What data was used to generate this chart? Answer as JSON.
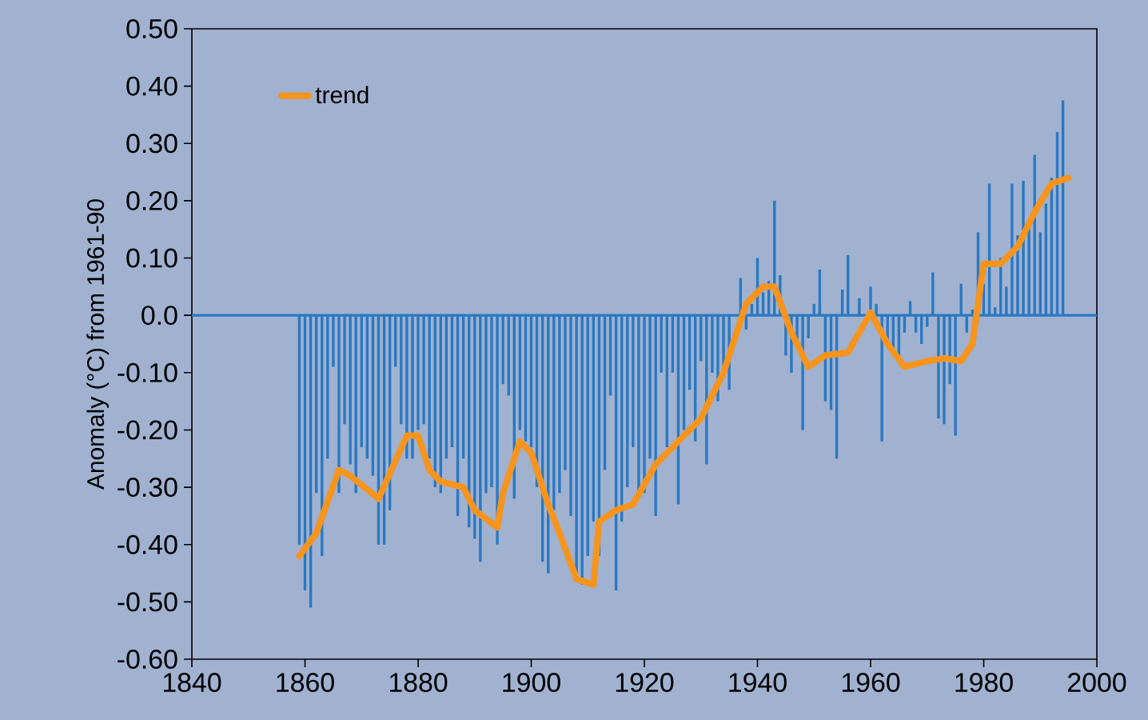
{
  "chart_data": {
    "type": "bar",
    "ylabel": "Anomaly (°C) from 1961-90",
    "xlim": [
      1840,
      2000
    ],
    "xticks": [
      1840,
      1860,
      1880,
      1900,
      1920,
      1940,
      1960,
      1980,
      2000
    ],
    "ylim": [
      -0.6,
      0.5
    ],
    "yticks": [
      {
        "value": 0.5,
        "label": "0.50"
      },
      {
        "value": 0.4,
        "label": "0.40"
      },
      {
        "value": 0.3,
        "label": "0.30"
      },
      {
        "value": 0.2,
        "label": "0.20"
      },
      {
        "value": 0.1,
        "label": "0.10"
      },
      {
        "value": 0,
        "label": "0.0"
      },
      {
        "value": -0.1,
        "label": "-0.10"
      },
      {
        "value": -0.2,
        "label": "-0.20"
      },
      {
        "value": -0.3,
        "label": "-0.30"
      },
      {
        "value": -0.4,
        "label": "-0.40"
      },
      {
        "value": -0.5,
        "label": "-0.50"
      },
      {
        "value": -0.6,
        "label": "-0.60"
      }
    ],
    "grid": false,
    "legend": "top left",
    "ref_lines": [
      {
        "axis": "y",
        "value": 0,
        "color": "#2a78c2"
      }
    ],
    "series": [
      {
        "color": "#2a78c2",
        "x": [
          1859,
          1860,
          1861,
          1862,
          1863,
          1864,
          1865,
          1866,
          1867,
          1868,
          1869,
          1870,
          1871,
          1872,
          1873,
          1874,
          1875,
          1876,
          1877,
          1878,
          1879,
          1880,
          1881,
          1882,
          1883,
          1884,
          1885,
          1886,
          1887,
          1888,
          1889,
          1890,
          1891,
          1892,
          1893,
          1894,
          1895,
          1896,
          1897,
          1898,
          1899,
          1900,
          1901,
          1902,
          1903,
          1904,
          1905,
          1906,
          1907,
          1908,
          1909,
          1910,
          1911,
          1912,
          1913,
          1914,
          1915,
          1916,
          1917,
          1918,
          1919,
          1920,
          1921,
          1922,
          1923,
          1924,
          1925,
          1926,
          1927,
          1928,
          1929,
          1930,
          1931,
          1932,
          1933,
          1934,
          1935,
          1936,
          1937,
          1938,
          1939,
          1940,
          1941,
          1942,
          1943,
          1944,
          1945,
          1946,
          1947,
          1948,
          1949,
          1950,
          1951,
          1952,
          1953,
          1954,
          1955,
          1956,
          1957,
          1958,
          1959,
          1960,
          1961,
          1962,
          1963,
          1964,
          1965,
          1966,
          1967,
          1968,
          1969,
          1970,
          1971,
          1972,
          1973,
          1974,
          1975,
          1976,
          1977,
          1978,
          1979,
          1980,
          1981,
          1982,
          1983,
          1984,
          1985,
          1986,
          1987,
          1988,
          1989,
          1990,
          1991,
          1992,
          1993,
          1994
        ],
        "values": [
          -0.4,
          -0.48,
          -0.51,
          -0.31,
          -0.42,
          -0.25,
          -0.09,
          -0.31,
          -0.19,
          -0.26,
          -0.31,
          -0.23,
          -0.25,
          -0.28,
          -0.4,
          -0.4,
          -0.34,
          -0.09,
          -0.19,
          -0.25,
          -0.25,
          -0.2,
          -0.19,
          -0.25,
          -0.3,
          -0.31,
          -0.25,
          -0.23,
          -0.35,
          -0.25,
          -0.37,
          -0.39,
          -0.43,
          -0.31,
          -0.3,
          -0.4,
          -0.12,
          -0.14,
          -0.32,
          -0.2,
          -0.22,
          -0.23,
          -0.3,
          -0.43,
          -0.45,
          -0.34,
          -0.31,
          -0.27,
          -0.35,
          -0.45,
          -0.47,
          -0.42,
          -0.36,
          -0.42,
          -0.27,
          -0.14,
          -0.48,
          -0.36,
          -0.3,
          -0.23,
          -0.31,
          -0.31,
          -0.25,
          -0.35,
          -0.1,
          -0.23,
          -0.1,
          -0.33,
          -0.2,
          -0.13,
          -0.22,
          -0.08,
          -0.26,
          -0.1,
          -0.15,
          -0.1,
          -0.13,
          null,
          0.065,
          -0.025,
          0.02,
          0.1,
          0.04,
          0.06,
          0.2,
          0.07,
          -0.07,
          -0.1,
          -0.05,
          -0.2,
          -0.04,
          0.02,
          0.08,
          -0.15,
          -0.165,
          -0.25,
          0.045,
          0.105,
          null,
          0.03,
          null,
          0.05,
          0.02,
          -0.22,
          -0.05,
          -0.07,
          -0.07,
          -0.03,
          0.025,
          -0.03,
          -0.05,
          -0.02,
          0.075,
          -0.18,
          -0.19,
          -0.12,
          -0.21,
          0.055,
          -0.03,
          0.01,
          0.145,
          0.055,
          0.23,
          0.014,
          0.1,
          0.05,
          0.23,
          0.14,
          0.235,
          0.16,
          0.28,
          0.145,
          0.195,
          0.24,
          0.32,
          0.375
        ]
      },
      {
        "type": "line",
        "name": "trend",
        "color": "#f7941d",
        "x": [
          1859,
          1862,
          1866,
          1868,
          1873,
          1878,
          1880,
          1882,
          1884,
          1888,
          1890,
          1894,
          1895,
          1898,
          1900,
          1903,
          1905,
          1908,
          1911,
          1912,
          1915,
          1918,
          1922,
          1926,
          1930,
          1934,
          1938,
          1941,
          1943,
          1946,
          1949,
          1952,
          1956,
          1960,
          1963,
          1966,
          1970,
          1973,
          1976,
          1978,
          1980,
          1983,
          1986,
          1989,
          1992,
          1995
        ],
        "values": [
          -0.42,
          -0.38,
          -0.27,
          -0.28,
          -0.32,
          -0.21,
          -0.21,
          -0.27,
          -0.29,
          -0.3,
          -0.34,
          -0.37,
          -0.31,
          -0.22,
          -0.24,
          -0.33,
          -0.38,
          -0.46,
          -0.47,
          -0.36,
          -0.34,
          -0.33,
          -0.26,
          -0.22,
          -0.18,
          -0.1,
          0.02,
          0.05,
          0.05,
          -0.03,
          -0.09,
          -0.07,
          -0.065,
          0.005,
          -0.05,
          -0.09,
          -0.08,
          -0.075,
          -0.08,
          -0.05,
          0.09,
          0.09,
          0.12,
          0.18,
          0.23,
          0.24
        ]
      }
    ]
  }
}
